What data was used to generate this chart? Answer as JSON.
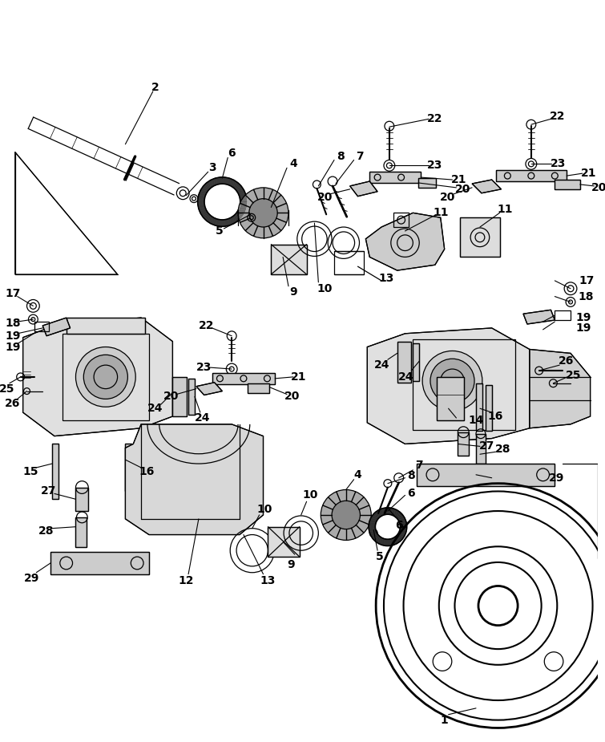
{
  "bg_color": "#ffffff",
  "line_color": "#000000",
  "fig_width": 7.55,
  "fig_height": 9.25,
  "dpi": 100,
  "lw": 0.9
}
